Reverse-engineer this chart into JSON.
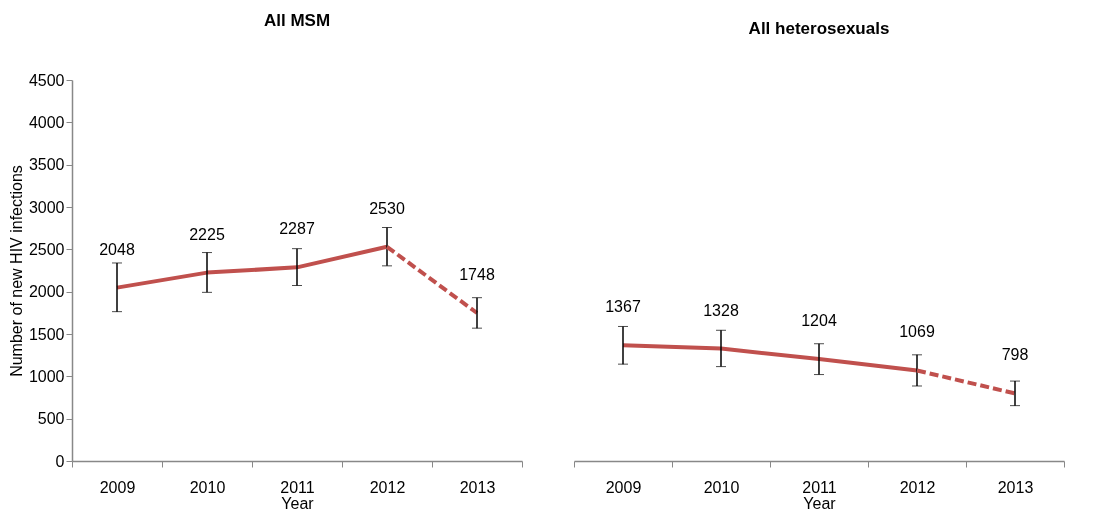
{
  "chart_data": [
    {
      "type": "line",
      "title": "All MSM",
      "xlabel": "Year",
      "ylabel": "Number of new HIV infections",
      "categories": [
        "2009",
        "2010",
        "2011",
        "2012",
        "2013"
      ],
      "ylim": [
        0,
        4500
      ],
      "yticks": [
        0,
        500,
        1000,
        1500,
        2000,
        2500,
        3000,
        3500,
        4000,
        4500
      ],
      "grid": false,
      "marker": "none",
      "data_labels": true,
      "series": [
        {
          "color": "#c0504d",
          "line_style": "solid",
          "values": [
            2048,
            2225,
            2287,
            2530,
            null
          ],
          "errors": [
            [
              1764,
              2339
            ],
            [
              1992,
              2462
            ],
            [
              2073,
              2508
            ],
            [
              2305,
              2758
            ],
            null
          ]
        },
        {
          "color": "#c0504d",
          "line_style": "dashed",
          "values": [
            null,
            null,
            null,
            2530,
            1748
          ],
          "value_labels": [
            null,
            null,
            null,
            null,
            "1748"
          ],
          "errors": [
            null,
            null,
            null,
            null,
            [
              1569,
              1929
            ]
          ]
        }
      ]
    },
    {
      "type": "line",
      "title": "All heterosexuals",
      "xlabel": "Year",
      "categories": [
        "2009",
        "2010",
        "2011",
        "2012",
        "2013"
      ],
      "ylim": [
        0,
        4500
      ],
      "tick_labels": "x",
      "grid": false,
      "marker": "none",
      "data_labels": true,
      "series": [
        {
          "color": "#c0504d",
          "line_style": "solid",
          "values": [
            1367,
            1328,
            1204,
            1069,
            null
          ],
          "errors": [
            [
              1144,
              1589
            ],
            [
              1115,
              1544
            ],
            [
              1021,
              1385
            ],
            [
              886,
              1254
            ],
            null
          ]
        },
        {
          "color": "#c0504d",
          "line_style": "dashed",
          "values": [
            null,
            null,
            null,
            1069,
            798
          ],
          "value_labels": [
            null,
            null,
            null,
            null,
            "798"
          ],
          "errors": [
            null,
            null,
            null,
            null,
            [
              654,
              944
            ]
          ]
        }
      ]
    }
  ]
}
